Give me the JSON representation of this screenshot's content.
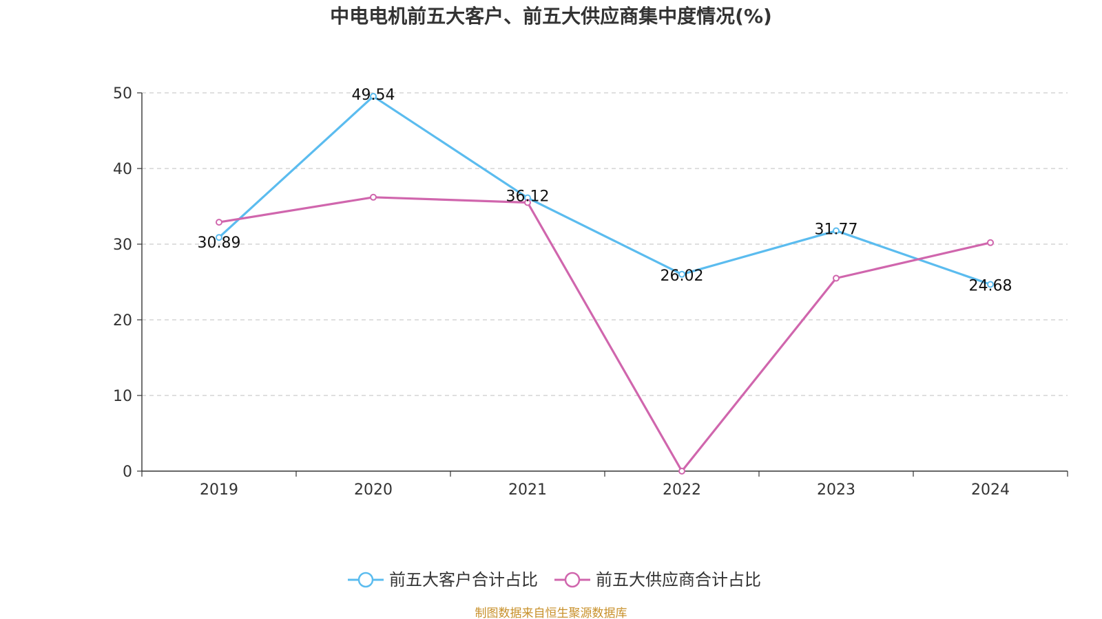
{
  "chart_data": {
    "type": "line",
    "title": "中电电机前五大客户、前五大供应商集中度情况(%)",
    "categories": [
      "2019",
      "2020",
      "2021",
      "2022",
      "2023",
      "2024"
    ],
    "ylim": [
      0,
      50
    ],
    "yticks": [
      0,
      10,
      20,
      30,
      40,
      50
    ],
    "grid": true,
    "legend_position": "bottom-center",
    "series": [
      {
        "name": "前五大客户合计占比",
        "color": "#5bbcef",
        "values": [
          30.89,
          49.54,
          36.12,
          26.02,
          31.77,
          24.68
        ],
        "labels": [
          "30.89",
          "49.54",
          "36.12",
          "26.02",
          "31.77",
          "24.68"
        ]
      },
      {
        "name": "前五大供应商合计占比",
        "color": "#d066ad",
        "values": [
          32.9,
          36.2,
          35.5,
          0,
          25.5,
          30.2
        ]
      }
    ],
    "source": "制图数据来自恒生聚源数据库"
  }
}
